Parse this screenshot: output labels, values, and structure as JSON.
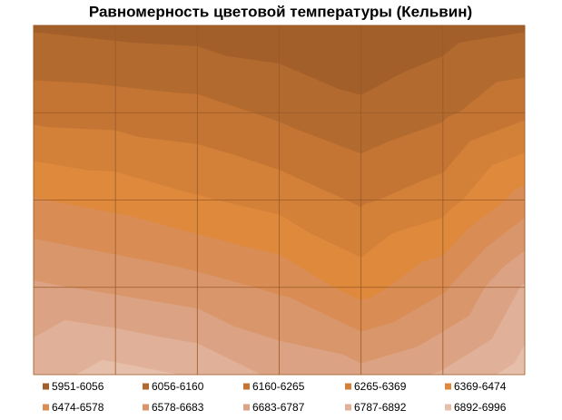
{
  "chart_data": {
    "type": "contour",
    "title": "Равномерность цветовой температуры (Кельвин)",
    "levels": [
      5951,
      6056,
      6160,
      6265,
      6369,
      6474,
      6578,
      6683,
      6787,
      6892,
      6996
    ],
    "z": [
      [
        6040,
        6020,
        6010,
        5990,
        5960,
        6010,
        6040
      ],
      [
        6230,
        6220,
        6200,
        6140,
        6080,
        6140,
        6240
      ],
      [
        6480,
        6440,
        6380,
        6330,
        6250,
        6320,
        6520
      ],
      [
        6700,
        6660,
        6620,
        6560,
        6430,
        6560,
        6800
      ],
      [
        6850,
        6930,
        6880,
        6760,
        6720,
        6800,
        6940
      ]
    ],
    "series": [
      {
        "name": "5951-6056",
        "color": "#a35f2a"
      },
      {
        "name": "6056-6160",
        "color": "#b26a2f"
      },
      {
        "name": "6160-6265",
        "color": "#c47534"
      },
      {
        "name": "6265-6369",
        "color": "#d38038"
      },
      {
        "name": "6369-6474",
        "color": "#df893c"
      },
      {
        "name": "6474-6578",
        "color": "#d98c54"
      },
      {
        "name": "6578-6683",
        "color": "#d9966b"
      },
      {
        "name": "6683-6787",
        "color": "#dba283"
      },
      {
        "name": "6787-6892",
        "color": "#e0b198"
      },
      {
        "name": "6892-6996",
        "color": "#e6bfab"
      }
    ],
    "legend": "bottom"
  }
}
